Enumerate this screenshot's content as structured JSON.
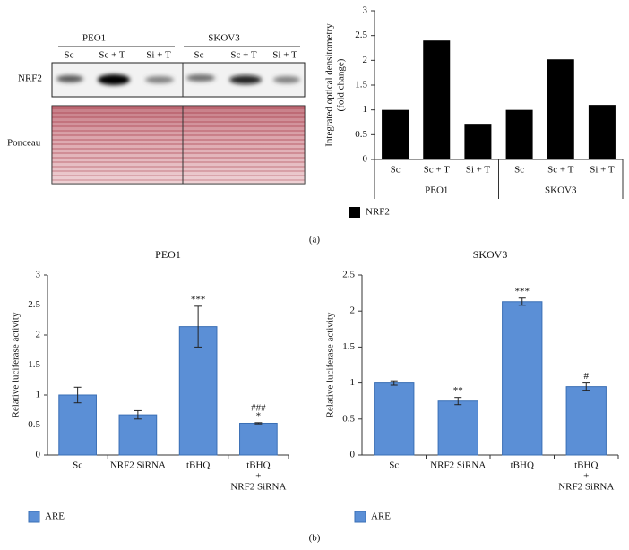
{
  "blot": {
    "cell_lines": [
      "PEO1",
      "SKOV3"
    ],
    "lanes": [
      "Sc",
      "Sc + T",
      "Si + T"
    ],
    "rows": [
      "NRF2",
      "Ponceau"
    ]
  },
  "panel_labels": [
    "(a)",
    "(b)"
  ],
  "chart_data": [
    {
      "type": "bar",
      "y_label": [
        "Integrated optical densitometry",
        "(fold change)"
      ],
      "categories": [
        "Sc",
        "Sc + T",
        "Si + T",
        "Sc",
        "Sc + T",
        "Si + T"
      ],
      "groups": [
        "PEO1",
        "SKOV3"
      ],
      "series": [
        {
          "name": "NRF2",
          "color": "#000000",
          "values": [
            1,
            2.4,
            0.72,
            1,
            2.02,
            1.1
          ]
        }
      ],
      "ylim": [
        0,
        3
      ],
      "yticks": [
        0,
        0.5,
        1,
        1.5,
        2,
        2.5,
        3
      ]
    },
    {
      "type": "bar",
      "title": "PEO1",
      "y_label": [
        "Relative luciferase activity"
      ],
      "categories": [
        "Sc",
        "NRF2 SiRNA",
        "tBHQ",
        [
          "tBHQ",
          "+",
          "NRF2 SiRNA"
        ]
      ],
      "series": [
        {
          "name": "ARE",
          "color": "#5b8fd6",
          "values": [
            1,
            0.67,
            2.14,
            0.53
          ],
          "errors": [
            0.13,
            0.07,
            0.34,
            0.01
          ],
          "annotations": [
            null,
            null,
            [
              "***"
            ],
            [
              "###",
              "*"
            ]
          ]
        }
      ],
      "ylim": [
        0,
        3
      ],
      "yticks": [
        0,
        0.5,
        1,
        1.5,
        2,
        2.5,
        3
      ]
    },
    {
      "type": "bar",
      "title": "SKOV3",
      "y_label": [
        "Relative luciferase activity"
      ],
      "categories": [
        "Sc",
        "NRF2 SiRNA",
        "tBHQ",
        [
          "tBHQ",
          "+",
          "NRF2 SiRNA"
        ]
      ],
      "series": [
        {
          "name": "ARE",
          "color": "#5b8fd6",
          "values": [
            1,
            0.75,
            2.13,
            0.95
          ],
          "errors": [
            0.03,
            0.05,
            0.05,
            0.05
          ],
          "annotations": [
            null,
            [
              "**"
            ],
            [
              "***"
            ],
            [
              "#"
            ]
          ]
        }
      ],
      "ylim": [
        0,
        2.5
      ],
      "yticks": [
        0,
        0.5,
        1,
        1.5,
        2,
        2.5
      ]
    }
  ]
}
